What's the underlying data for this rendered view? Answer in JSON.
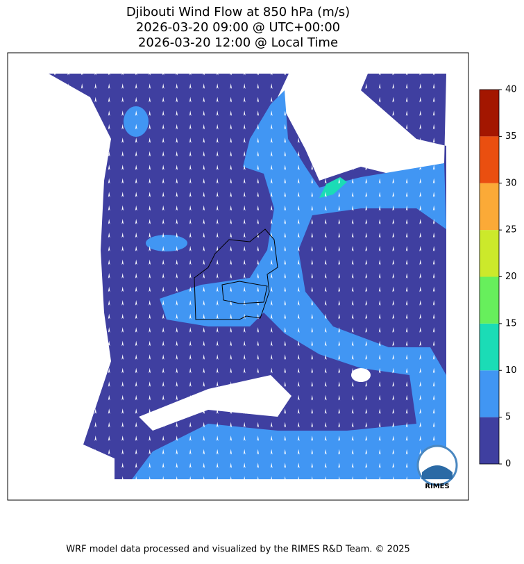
{
  "map": {
    "title": [
      "Djibouti Wind Flow at 850 hPa (m/s)",
      "2026-03-20 09:00 @ UTC+00:00",
      "2026-03-20 12:00 @ Local Time"
    ],
    "colorbar": {
      "lim": [
        0,
        40
      ],
      "ticks": [
        0,
        5,
        10,
        15,
        20,
        25,
        30,
        35,
        40
      ],
      "colors": [
        "#3f3fa0",
        "#4196f3",
        "#1bdcb6",
        "#67ef5c",
        "#cce92b",
        "#fbaa37",
        "#ea4f10",
        "#a31600"
      ]
    },
    "logo": "RIMES",
    "footer": "WRF model data processed and visualized by the RIMES R&D Team. © 2025"
  }
}
